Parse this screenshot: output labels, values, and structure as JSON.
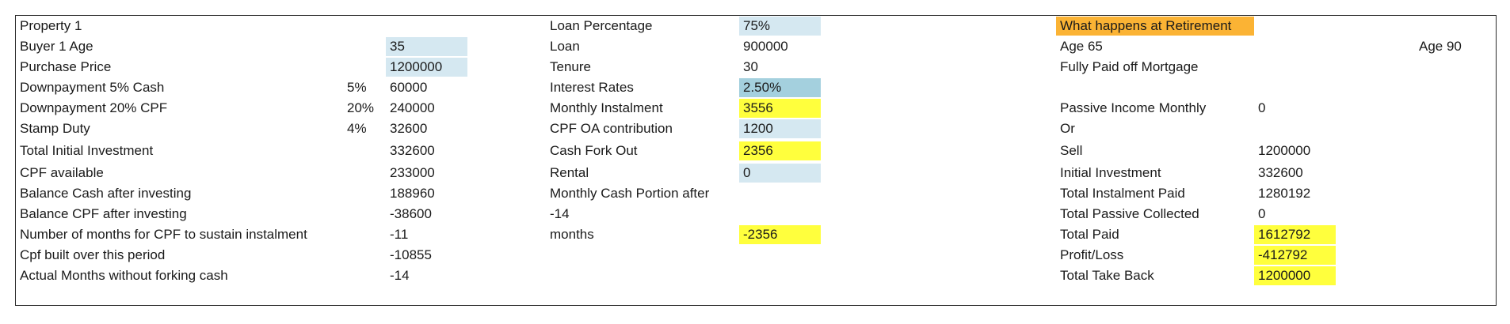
{
  "colors": {
    "input_blue": "#d5e8f1",
    "rate_teal": "#a4d0de",
    "highlight_yellow": "#ffff3d",
    "retirement_orange": "#fbb334"
  },
  "left": {
    "title": "Property 1",
    "rows": [
      {
        "label": "Buyer 1 Age",
        "pct": "",
        "value": "35"
      },
      {
        "label": "Purchase Price",
        "pct": "",
        "value": "1200000"
      },
      {
        "label": "Downpayment 5% Cash",
        "pct": "5%",
        "value": "60000"
      },
      {
        "label": "Downpayment 20% CPF",
        "pct": "20%",
        "value": "240000"
      },
      {
        "label": "Stamp Duty",
        "pct": "4%",
        "value": "32600"
      },
      {
        "label": "Total Initial Investment",
        "pct": "",
        "value": "332600"
      },
      {
        "label": "CPF available",
        "pct": "",
        "value": "233000"
      },
      {
        "label": "Balance Cash after investing",
        "pct": "",
        "value": "188960"
      },
      {
        "label": "Balance CPF after investing",
        "pct": "",
        "value": "-38600"
      },
      {
        "label": "Number of months for CPF to sustain instalment",
        "pct": "",
        "value": "-11"
      },
      {
        "label": "Cpf built over this period",
        "pct": "",
        "value": "-10855"
      },
      {
        "label": "Actual Months without forking cash",
        "pct": "",
        "value": "-14"
      }
    ]
  },
  "middle": {
    "rows": [
      {
        "label": "Loan Percentage",
        "value": "75%"
      },
      {
        "label": "Loan",
        "value": "900000"
      },
      {
        "label": "Tenure",
        "value": "30"
      },
      {
        "label": "Interest Rates",
        "value": "2.50%"
      },
      {
        "label": "Monthly Instalment",
        "value": "3556"
      },
      {
        "label": "CPF OA contribution",
        "value": "1200"
      },
      {
        "label": "Cash Fork Out",
        "value": "2356"
      },
      {
        "label": "Rental",
        "value": "0"
      },
      {
        "label": "Monthly Cash Portion after",
        "value": ""
      },
      {
        "label": "-14",
        "value": ""
      },
      {
        "label": "months",
        "value": "-2356"
      }
    ]
  },
  "right": {
    "header": "What happens at Retirement",
    "age_start": "Age 65",
    "age_end": "Age 90",
    "rows": [
      {
        "label": "Fully Paid off Mortgage",
        "value": ""
      },
      {
        "label": "Passive Income Monthly",
        "value": "0"
      },
      {
        "label": "Or",
        "value": ""
      },
      {
        "label": "Sell",
        "value": "1200000"
      },
      {
        "label": "Initial Investment",
        "value": "332600"
      },
      {
        "label": "Total Instalment Paid",
        "value": "1280192"
      },
      {
        "label": "Total Passive Collected",
        "value": "0"
      },
      {
        "label": "Total Paid",
        "value": "1612792"
      },
      {
        "label": "Profit/Loss",
        "value": "-412792"
      },
      {
        "label": "Total Take Back",
        "value": "1200000"
      }
    ]
  }
}
